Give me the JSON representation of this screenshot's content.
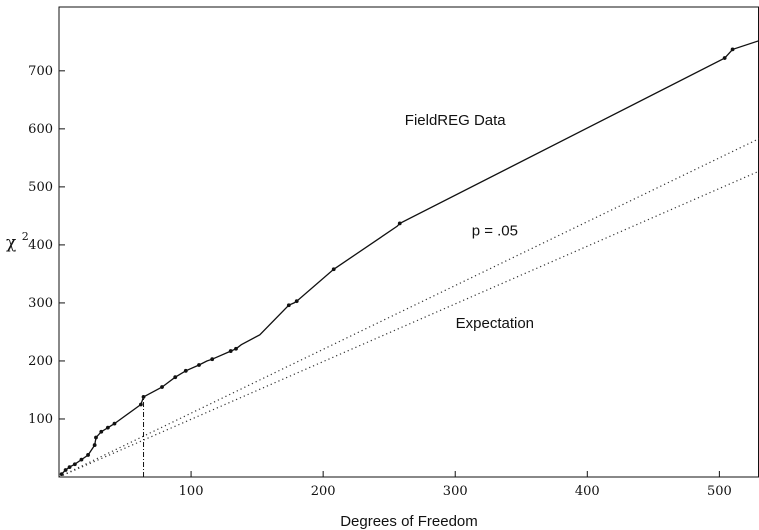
{
  "chart_data": {
    "type": "line",
    "xlabel": "Degrees of Freedom",
    "ylabel": "χ",
    "ylabel_superscript": "2",
    "xlim": [
      0,
      530
    ],
    "ylim": [
      0,
      810
    ],
    "x_ticks": [
      100,
      200,
      300,
      400,
      500
    ],
    "y_ticks": [
      100,
      200,
      300,
      400,
      500,
      600,
      700
    ],
    "grid": false,
    "series": [
      {
        "name": "FieldREG Data",
        "style": "solid",
        "markers": true,
        "color": "#111111",
        "x": [
          2,
          5,
          8,
          12,
          17,
          22,
          27,
          28,
          32,
          37,
          42,
          62,
          64,
          78,
          88,
          96,
          106,
          112,
          116,
          130,
          134,
          138,
          152,
          174,
          178,
          180,
          208,
          256,
          258,
          504,
          510,
          530
        ],
        "y": [
          5,
          12,
          17,
          22,
          30,
          38,
          55,
          68,
          78,
          85,
          92,
          125,
          138,
          155,
          172,
          183,
          193,
          200,
          203,
          217,
          221,
          228,
          245,
          296,
          300,
          303,
          358,
          432,
          437,
          722,
          737,
          752
        ],
        "markers_x": [
          2,
          5,
          8,
          12,
          17,
          22,
          27,
          28,
          32,
          37,
          42,
          62,
          64,
          78,
          88,
          96,
          106,
          116,
          130,
          134,
          174,
          180,
          208,
          258,
          504,
          510
        ],
        "markers_y": [
          5,
          12,
          17,
          22,
          30,
          38,
          55,
          68,
          78,
          85,
          92,
          125,
          138,
          155,
          172,
          183,
          193,
          203,
          217,
          221,
          296,
          303,
          358,
          437,
          722,
          737
        ]
      },
      {
        "name": "p = .05",
        "style": "dotted",
        "color": "#333333",
        "x": [
          0,
          530
        ],
        "y": [
          0,
          583
        ]
      },
      {
        "name": "Expectation",
        "style": "dotted",
        "color": "#333333",
        "x": [
          0,
          530
        ],
        "y": [
          0,
          527
        ]
      }
    ],
    "annotations": [
      {
        "text": "FieldREG Data",
        "x": 300,
        "y": 615
      },
      {
        "text": "p = .05",
        "x": 330,
        "y": 425
      },
      {
        "text": "Expectation",
        "x": 330,
        "y": 265
      }
    ],
    "reference_line": {
      "style": "dash-dot",
      "x": 64,
      "y_from": 0,
      "y_to": 138
    }
  }
}
